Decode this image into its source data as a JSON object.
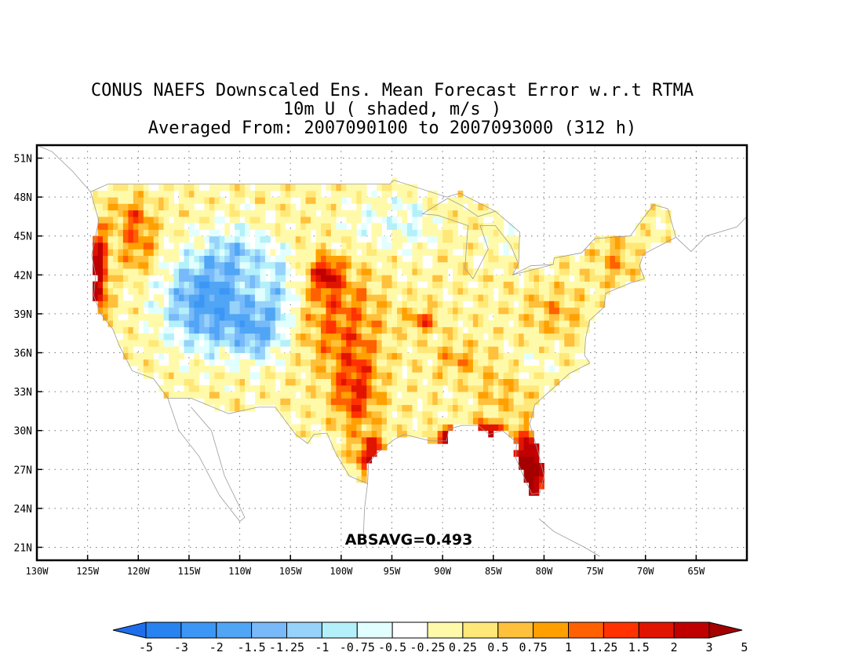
{
  "title": {
    "line1": "CONUS NAEFS Downscaled Ens. Mean Forecast Error w.r.t RTMA",
    "line2": "10m U ( shaded, m/s )",
    "line3": "Averaged From: 2007090100 to 2007093000 (312 h)"
  },
  "annotation": "ABSAVG=0.493",
  "map": {
    "lon_range": [
      -130,
      -60
    ],
    "lat_range": [
      20,
      52
    ],
    "lat_labels": [
      "21N",
      "24N",
      "27N",
      "30N",
      "33N",
      "36N",
      "39N",
      "42N",
      "45N",
      "48N",
      "51N"
    ],
    "lon_labels": [
      "130W",
      "125W",
      "120W",
      "115W",
      "110W",
      "105W",
      "100W",
      "95W",
      "90W",
      "85W",
      "80W",
      "75W",
      "70W",
      "65W"
    ],
    "grid": "dotted"
  },
  "colorbar": {
    "labels": [
      "-5",
      "-3",
      "-2",
      "-1.5",
      "-1.25",
      "-1",
      "-0.75",
      "-0.5",
      "-0.25",
      "0.25",
      "0.5",
      "0.75",
      "1",
      "1.25",
      "1.5",
      "2",
      "3",
      "5"
    ],
    "colors": [
      "#1e6eeb",
      "#2882f0",
      "#3c96f5",
      "#50a5f5",
      "#78b9fa",
      "#96d2fa",
      "#b4f0fa",
      "#e1ffff",
      "#ffffff",
      "#fffaaa",
      "#ffe878",
      "#ffc03c",
      "#ffa000",
      "#ff6000",
      "#ff3200",
      "#e11400",
      "#c00000",
      "#a50000"
    ]
  }
}
